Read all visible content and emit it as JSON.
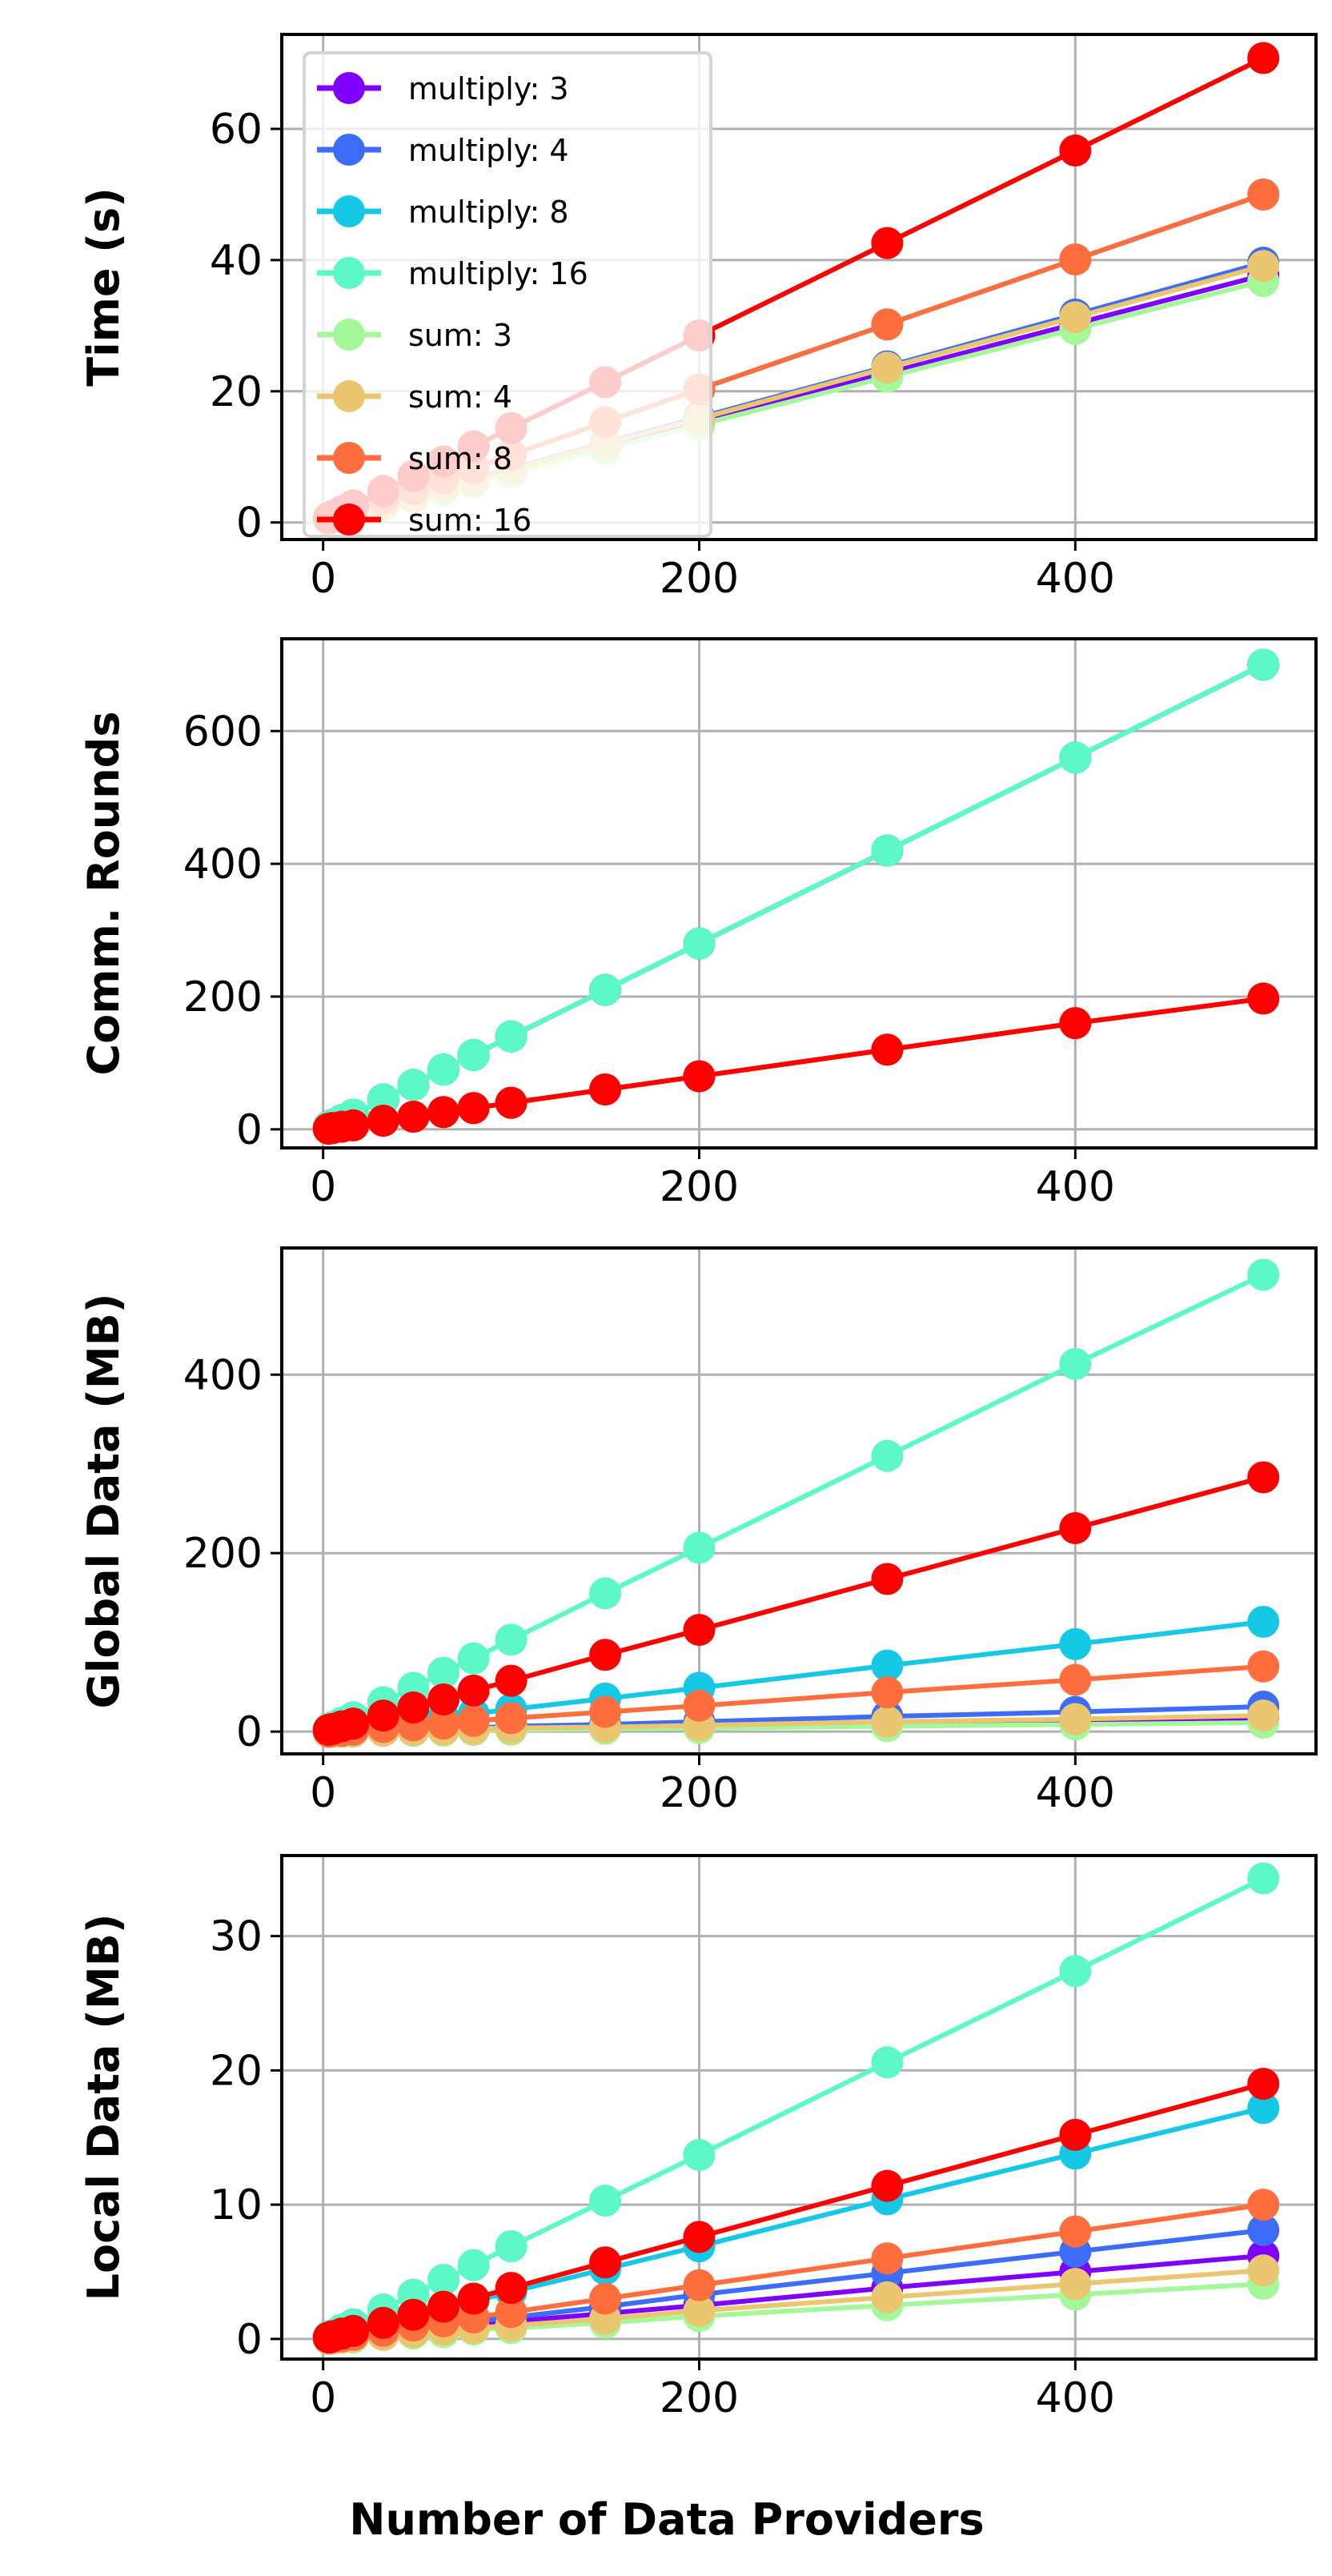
{
  "chart_data": [
    {
      "type": "line",
      "ylabel": "Time (s)",
      "xlabel": "",
      "xlim": [
        -22,
        528
      ],
      "ylim": [
        -2.6,
        74.4
      ],
      "xticks": [
        0,
        200,
        400
      ],
      "yticks": [
        0,
        20,
        40,
        60
      ],
      "grid": true,
      "legend": "top-left",
      "x": [
        3,
        5,
        10,
        16,
        32,
        48,
        64,
        80,
        100,
        150,
        200,
        300,
        400,
        500
      ],
      "series": [
        {
          "name": "multiply: 3",
          "color": "#8000ff",
          "values": [
            0.5,
            0.7,
            1.0,
            1.5,
            2.7,
            3.9,
            5.1,
            6.3,
            7.8,
            11.6,
            15.3,
            22.8,
            30.3,
            37.7
          ]
        },
        {
          "name": "multiply: 4",
          "color": "#3c6cf8",
          "values": [
            0.5,
            0.7,
            1.1,
            1.6,
            2.8,
            4.1,
            5.3,
            6.6,
            8.2,
            12.1,
            16.0,
            23.8,
            31.7,
            39.6
          ]
        },
        {
          "name": "multiply: 8",
          "color": "#14c8e6",
          "values": [
            0.6,
            0.8,
            1.3,
            1.9,
            3.5,
            5.1,
            6.7,
            8.3,
            10.3,
            15.3,
            20.3,
            30.2,
            40.1,
            50.0
          ]
        },
        {
          "name": "multiply: 16",
          "color": "#5cf8c8",
          "values": [
            0.7,
            1.0,
            1.7,
            2.6,
            4.8,
            7.1,
            9.3,
            11.6,
            14.4,
            21.4,
            28.5,
            42.6,
            56.7,
            70.8
          ]
        },
        {
          "name": "sum: 3",
          "color": "#a4f89a",
          "values": [
            0.5,
            0.6,
            1.0,
            1.4,
            2.6,
            3.8,
            4.9,
            6.1,
            7.6,
            11.2,
            14.9,
            22.2,
            29.5,
            36.8
          ]
        },
        {
          "name": "sum: 4",
          "color": "#eac670",
          "values": [
            0.5,
            0.7,
            1.1,
            1.5,
            2.8,
            4.0,
            5.3,
            6.5,
            8.1,
            12.0,
            15.8,
            23.6,
            31.3,
            39.1
          ]
        },
        {
          "name": "sum: 8",
          "color": "#ff6e3c",
          "values": [
            0.6,
            0.8,
            1.3,
            1.9,
            3.5,
            5.1,
            6.7,
            8.3,
            10.3,
            15.3,
            20.3,
            30.2,
            40.1,
            50.0
          ]
        },
        {
          "name": "sum: 16",
          "color": "#ff0000",
          "values": [
            0.7,
            1.0,
            1.7,
            2.6,
            4.8,
            7.1,
            9.3,
            11.6,
            14.4,
            21.4,
            28.5,
            42.6,
            56.7,
            70.8
          ]
        }
      ]
    },
    {
      "type": "line",
      "ylabel": "Comm. Rounds",
      "xlabel": "",
      "xlim": [
        -22,
        528
      ],
      "ylim": [
        -28,
        739
      ],
      "xticks": [
        0,
        200,
        400
      ],
      "yticks": [
        0,
        200,
        400,
        600
      ],
      "grid": true,
      "x": [
        3,
        5,
        10,
        16,
        32,
        48,
        64,
        80,
        100,
        150,
        200,
        300,
        400,
        500
      ],
      "series": [
        {
          "name": "multiply: 3",
          "color": "#8000ff",
          "values": [
            4,
            7,
            14,
            22,
            45,
            67,
            90,
            112,
            140,
            210,
            280,
            420,
            560,
            700
          ]
        },
        {
          "name": "multiply: 4",
          "color": "#3c6cf8",
          "values": [
            4,
            7,
            14,
            22,
            45,
            67,
            90,
            112,
            140,
            210,
            280,
            420,
            560,
            700
          ]
        },
        {
          "name": "multiply: 8",
          "color": "#14c8e6",
          "values": [
            4,
            7,
            14,
            22,
            45,
            67,
            90,
            112,
            140,
            210,
            280,
            420,
            560,
            700
          ]
        },
        {
          "name": "multiply: 16",
          "color": "#5cf8c8",
          "values": [
            4,
            7,
            14,
            22,
            45,
            67,
            90,
            112,
            140,
            210,
            280,
            420,
            560,
            700
          ]
        },
        {
          "name": "sum: 3",
          "color": "#a4f89a",
          "values": [
            1,
            2,
            4,
            6,
            13,
            19,
            26,
            32,
            40,
            60,
            80,
            120,
            160,
            197
          ]
        },
        {
          "name": "sum: 4",
          "color": "#eac670",
          "values": [
            1,
            2,
            4,
            6,
            13,
            19,
            26,
            32,
            40,
            60,
            80,
            120,
            160,
            197
          ]
        },
        {
          "name": "sum: 8",
          "color": "#ff6e3c",
          "values": [
            1,
            2,
            4,
            6,
            13,
            19,
            26,
            32,
            40,
            60,
            80,
            120,
            160,
            197
          ]
        },
        {
          "name": "sum: 16",
          "color": "#ff0000",
          "values": [
            1,
            2,
            4,
            6,
            13,
            19,
            26,
            32,
            40,
            60,
            80,
            120,
            160,
            197
          ]
        }
      ]
    },
    {
      "type": "line",
      "ylabel": "Global Data (MB)",
      "xlabel": "",
      "xlim": [
        -22,
        528
      ],
      "ylim": [
        -25,
        542
      ],
      "xticks": [
        0,
        200,
        400
      ],
      "yticks": [
        0,
        200,
        400
      ],
      "grid": true,
      "x": [
        3,
        5,
        10,
        16,
        32,
        48,
        64,
        80,
        100,
        150,
        200,
        300,
        400,
        500
      ],
      "series": [
        {
          "name": "multiply: 3",
          "color": "#8000ff",
          "values": [
            0,
            0,
            0,
            0,
            1,
            1,
            2,
            2,
            3,
            5,
            6,
            9,
            12,
            15
          ]
        },
        {
          "name": "multiply: 4",
          "color": "#3c6cf8",
          "values": [
            0,
            0,
            1,
            1,
            2,
            3,
            4,
            4,
            6,
            8,
            11,
            17,
            22,
            28
          ]
        },
        {
          "name": "multiply: 8",
          "color": "#14c8e6",
          "values": [
            1,
            1,
            2,
            4,
            8,
            12,
            16,
            20,
            25,
            37,
            49,
            74,
            98,
            123
          ]
        },
        {
          "name": "multiply: 16",
          "color": "#5cf8c8",
          "values": [
            3,
            5,
            10,
            16,
            33,
            49,
            66,
            82,
            103,
            155,
            206,
            309,
            412,
            512
          ]
        },
        {
          "name": "sum: 3",
          "color": "#a4f89a",
          "values": [
            0,
            0,
            0,
            0,
            1,
            1,
            1,
            2,
            2,
            3,
            4,
            6,
            8,
            10
          ]
        },
        {
          "name": "sum: 4",
          "color": "#eac670",
          "values": [
            0,
            0,
            0,
            1,
            1,
            2,
            2,
            3,
            4,
            5,
            7,
            11,
            14,
            18
          ]
        },
        {
          "name": "sum: 8",
          "color": "#ff6e3c",
          "values": [
            0,
            1,
            1,
            2,
            5,
            7,
            9,
            12,
            15,
            22,
            29,
            44,
            58,
            73
          ]
        },
        {
          "name": "sum: 16",
          "color": "#ff0000",
          "values": [
            2,
            3,
            6,
            9,
            18,
            27,
            36,
            46,
            57,
            86,
            114,
            171,
            228,
            285
          ]
        }
      ]
    },
    {
      "type": "line",
      "ylabel": "Local Data (MB)",
      "xlabel": "Number of Data Providers",
      "xlim": [
        -22,
        528
      ],
      "ylim": [
        -1.5,
        36
      ],
      "xticks": [
        0,
        200,
        400
      ],
      "yticks": [
        0,
        10,
        20,
        30
      ],
      "grid": true,
      "x": [
        3,
        5,
        10,
        16,
        32,
        48,
        64,
        80,
        100,
        150,
        200,
        300,
        400,
        500
      ],
      "series": [
        {
          "name": "multiply: 3",
          "color": "#8000ff",
          "values": [
            0.0,
            0.1,
            0.1,
            0.2,
            0.4,
            0.6,
            0.8,
            1.0,
            1.3,
            1.9,
            2.5,
            3.8,
            5.0,
            6.2
          ]
        },
        {
          "name": "multiply: 4",
          "color": "#3c6cf8",
          "values": [
            0.0,
            0.1,
            0.2,
            0.3,
            0.5,
            0.8,
            1.0,
            1.3,
            1.6,
            2.4,
            3.3,
            4.9,
            6.5,
            8.1
          ]
        },
        {
          "name": "multiply: 8",
          "color": "#14c8e6",
          "values": [
            0.1,
            0.2,
            0.3,
            0.6,
            1.1,
            1.7,
            2.2,
            2.8,
            3.5,
            5.2,
            6.9,
            10.4,
            13.8,
            17.2
          ]
        },
        {
          "name": "multiply: 16",
          "color": "#5cf8c8",
          "values": [
            0.2,
            0.3,
            0.7,
            1.1,
            2.2,
            3.3,
            4.4,
            5.5,
            6.9,
            10.3,
            13.7,
            20.6,
            27.4,
            34.3
          ]
        },
        {
          "name": "sum: 3",
          "color": "#a4f89a",
          "values": [
            0.0,
            0.0,
            0.1,
            0.1,
            0.3,
            0.4,
            0.5,
            0.7,
            0.8,
            1.2,
            1.7,
            2.5,
            3.3,
            4.1
          ]
        },
        {
          "name": "sum: 4",
          "color": "#eac670",
          "values": [
            0.0,
            0.1,
            0.1,
            0.2,
            0.3,
            0.5,
            0.7,
            0.8,
            1.0,
            1.5,
            2.1,
            3.1,
            4.1,
            5.1
          ]
        },
        {
          "name": "sum: 8",
          "color": "#ff6e3c",
          "values": [
            0.1,
            0.1,
            0.2,
            0.3,
            0.6,
            1.0,
            1.3,
            1.6,
            2.0,
            3.0,
            4.0,
            6.0,
            8.0,
            10.0
          ]
        },
        {
          "name": "sum: 16",
          "color": "#ff0000",
          "values": [
            0.1,
            0.2,
            0.4,
            0.6,
            1.2,
            1.8,
            2.4,
            3.0,
            3.8,
            5.7,
            7.6,
            11.4,
            15.2,
            19.0
          ]
        }
      ]
    }
  ]
}
